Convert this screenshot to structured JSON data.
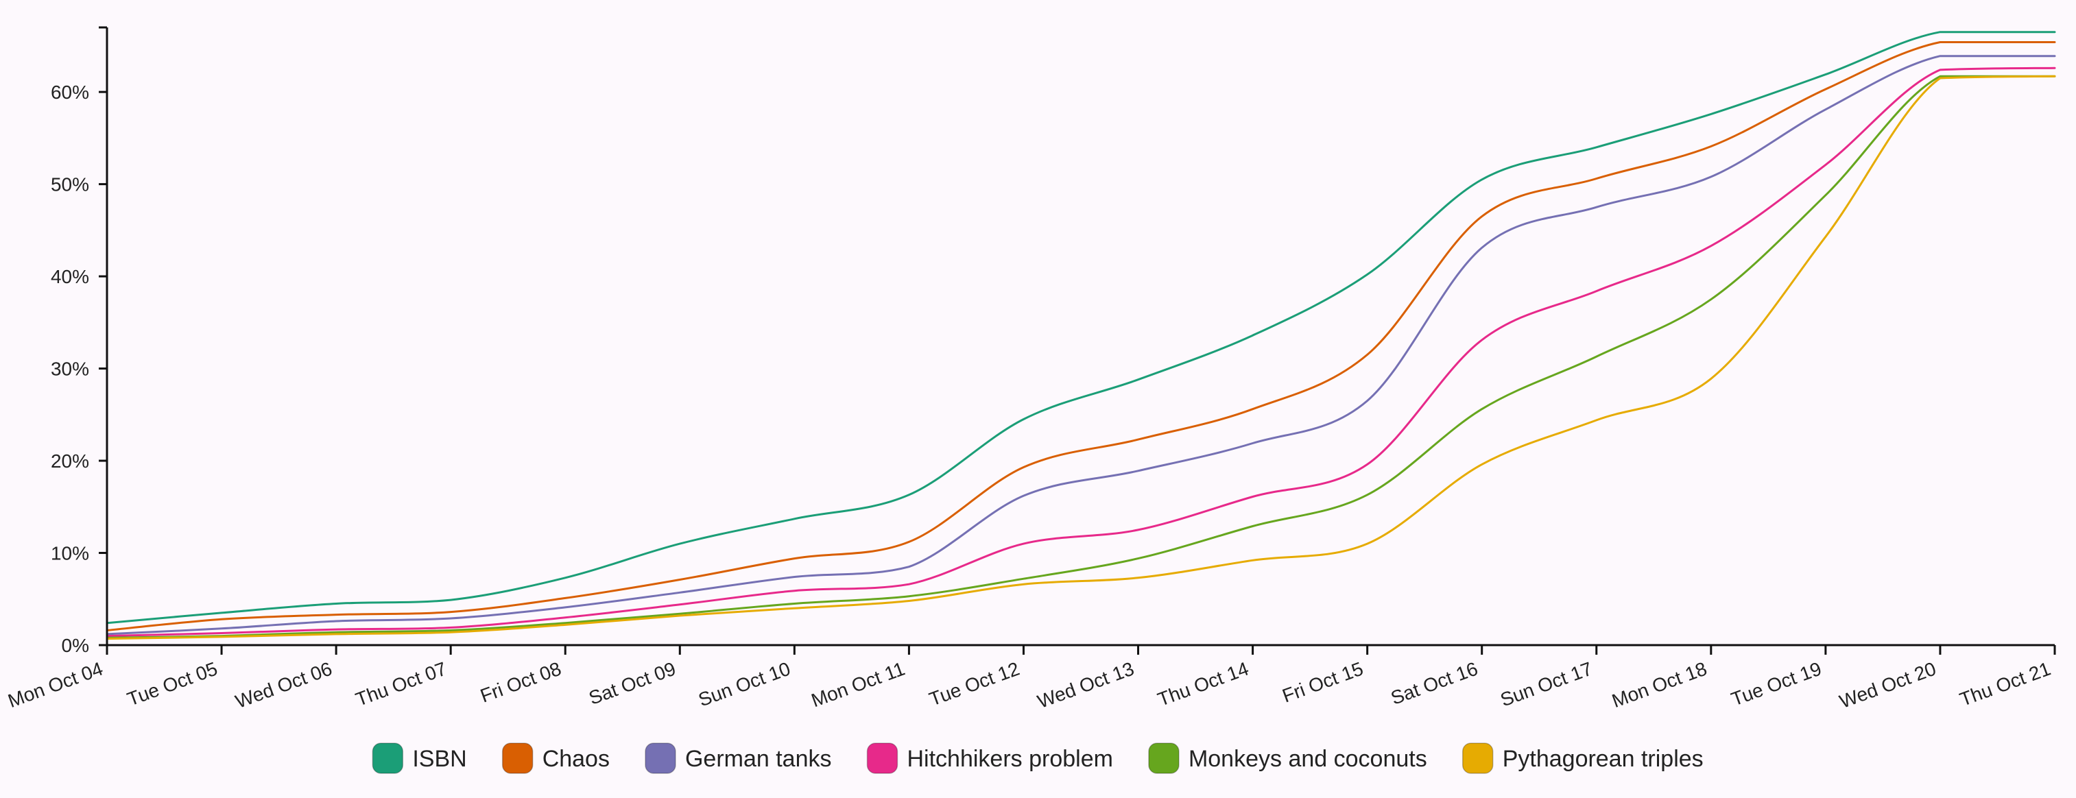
{
  "chart_data": {
    "type": "line",
    "title": "",
    "xlabel": "",
    "ylabel": "",
    "x": [
      "Mon Oct 04",
      "Tue Oct 05",
      "Wed Oct 06",
      "Thu Oct 07",
      "Fri Oct 08",
      "Sat Oct 09",
      "Sun Oct 10",
      "Mon Oct 11",
      "Tue Oct 12",
      "Wed Oct 13",
      "Thu Oct 14",
      "Fri Oct 15",
      "Sat Oct 16",
      "Sun Oct 17",
      "Mon Oct 18",
      "Tue Oct 19",
      "Wed Oct 20",
      "Thu Oct 21"
    ],
    "y_ticks": [
      0,
      10,
      20,
      30,
      40,
      50,
      60
    ],
    "y_tick_labels": [
      "0%",
      "10%",
      "20%",
      "30%",
      "40%",
      "50%",
      "60%"
    ],
    "ylim": [
      0,
      67
    ],
    "y_unit": "%",
    "grid": false,
    "legend_position": "bottom",
    "series": [
      {
        "name": "ISBN",
        "color": "#1b9e77",
        "values": [
          2.4,
          3.5,
          4.5,
          4.9,
          7.3,
          11.0,
          13.7,
          16.3,
          24.5,
          28.8,
          33.6,
          40.2,
          50.5,
          54.0,
          57.6,
          61.9,
          66.5,
          66.5
        ]
      },
      {
        "name": "Chaos",
        "color": "#d95f02",
        "values": [
          1.6,
          2.8,
          3.3,
          3.6,
          5.1,
          7.1,
          9.4,
          11.2,
          19.3,
          22.3,
          25.6,
          31.5,
          46.5,
          50.6,
          54.1,
          60.3,
          65.4,
          65.4
        ]
      },
      {
        "name": "German tanks",
        "color": "#7570b3",
        "values": [
          1.2,
          1.8,
          2.6,
          2.9,
          4.1,
          5.7,
          7.4,
          8.5,
          16.2,
          18.9,
          21.9,
          26.5,
          43.1,
          47.5,
          50.8,
          58.1,
          63.9,
          63.9
        ]
      },
      {
        "name": "Hitchhikers problem",
        "color": "#e7298a",
        "values": [
          1.0,
          1.3,
          1.7,
          1.9,
          3.0,
          4.4,
          5.9,
          6.6,
          11.0,
          12.5,
          16.1,
          19.6,
          33.1,
          38.4,
          43.3,
          52.1,
          62.4,
          62.6
        ]
      },
      {
        "name": "Monkeys and coconuts",
        "color": "#66a61e",
        "values": [
          0.8,
          1.0,
          1.4,
          1.6,
          2.4,
          3.4,
          4.5,
          5.3,
          7.2,
          9.4,
          12.9,
          16.3,
          25.6,
          31.3,
          37.5,
          48.8,
          61.7,
          61.7
        ]
      },
      {
        "name": "Pythagorean triples",
        "color": "#e6ab02",
        "values": [
          0.7,
          0.9,
          1.2,
          1.4,
          2.2,
          3.2,
          4.0,
          4.8,
          6.6,
          7.3,
          9.2,
          11.0,
          19.6,
          24.4,
          28.9,
          44.3,
          61.5,
          61.7
        ]
      }
    ]
  }
}
